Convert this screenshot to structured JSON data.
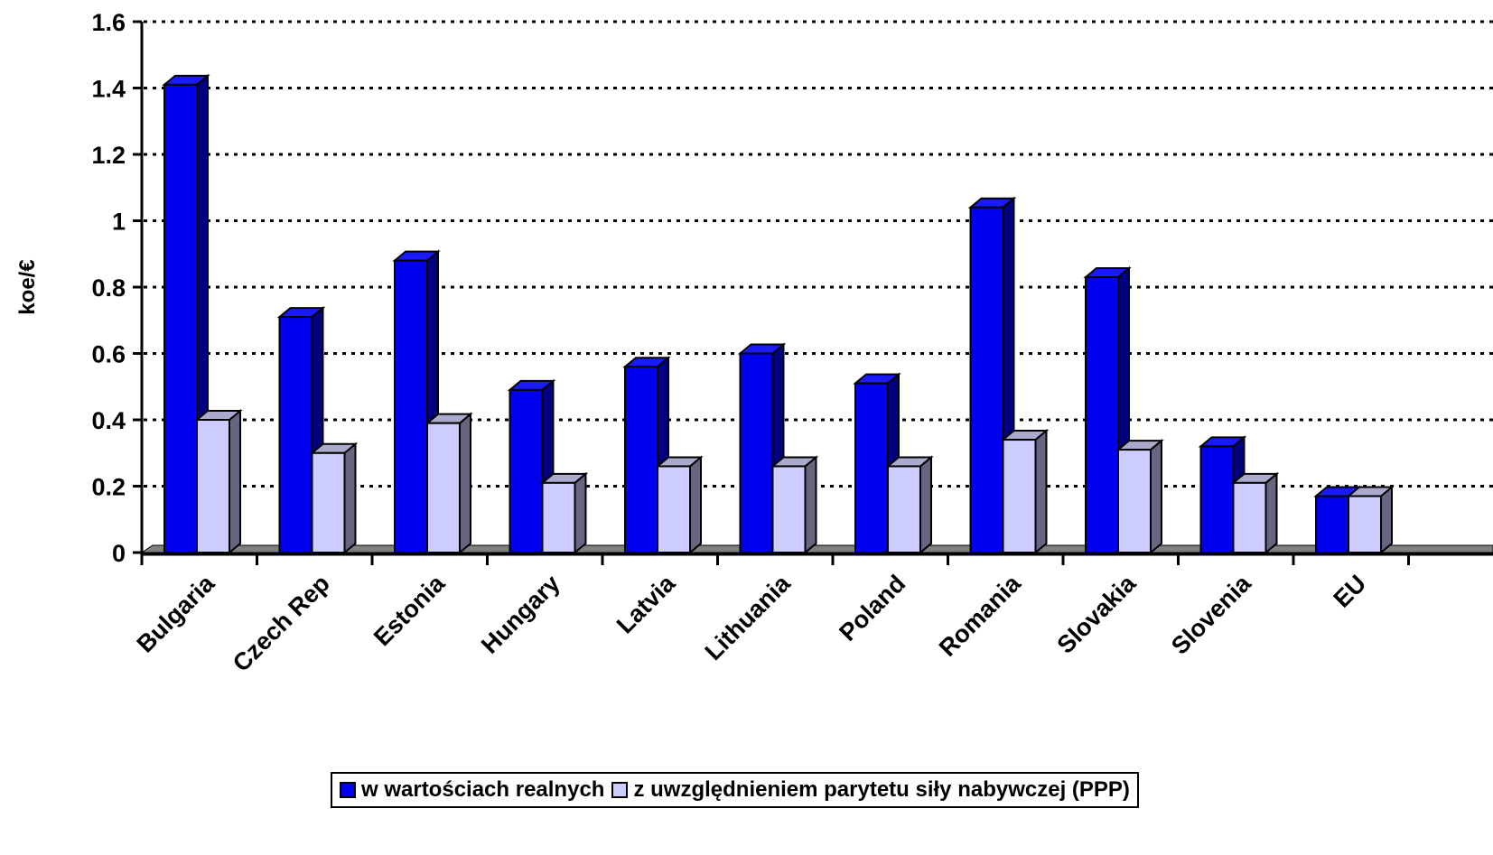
{
  "chart_data": {
    "type": "bar",
    "title": "",
    "xlabel": "",
    "ylabel": "koe/€",
    "ylim": [
      0,
      1.6
    ],
    "yticks": [
      "0",
      "0.2",
      "0.4",
      "0.6",
      "0.8",
      "1",
      "1.2",
      "1.4",
      "1.6"
    ],
    "grid": true,
    "legend_position": "bottom",
    "categories": [
      "Bulgaria",
      "Czech Rep",
      "Estonia",
      "Hungary",
      "Latvia",
      "Lithuania",
      "Poland",
      "Romania",
      "Slovakia",
      "Slovenia",
      "EU"
    ],
    "series": [
      {
        "name": "w wartościach realnych",
        "color": "#0000ee",
        "values": [
          1.41,
          0.71,
          0.88,
          0.49,
          0.56,
          0.6,
          0.51,
          1.04,
          0.83,
          0.32,
          0.17
        ]
      },
      {
        "name": "z uwzględnieniem parytetu siły nabywczej (PPP)",
        "color": "#ccccff",
        "values": [
          0.4,
          0.3,
          0.39,
          0.21,
          0.26,
          0.26,
          0.26,
          0.34,
          0.31,
          0.21,
          0.17
        ]
      }
    ]
  },
  "legend": {
    "items": [
      {
        "label": "w wartościach realnych",
        "color": "#0000ee"
      },
      {
        "label": "z uwzględnieniem parytetu siły nabywczej (PPP)",
        "color": "#ccccff"
      }
    ]
  }
}
